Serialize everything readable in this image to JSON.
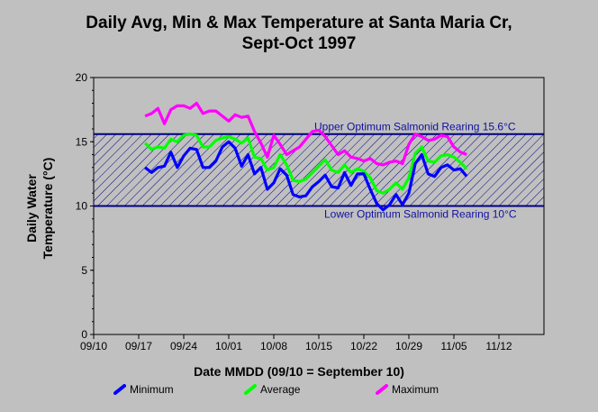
{
  "chart_data": {
    "type": "line",
    "title_line1": "Daily Avg, Min & Max Temperature at Santa Maria Cr,",
    "title_line2": "Sept-Oct 1997",
    "ylabel_line1": "Daily Water",
    "ylabel_line2": "Temperature (°C)",
    "xlabel": "Date MMDD (09/10 = September 10)",
    "x_start_label": "09/10",
    "x_tick_labels": [
      "09/10",
      "09/17",
      "09/24",
      "10/01",
      "10/08",
      "10/15",
      "10/22",
      "10/29",
      "11/05",
      "11/12"
    ],
    "y_ticks": [
      0,
      5,
      10,
      15,
      20
    ],
    "ylim": [
      0,
      20
    ],
    "grid": false,
    "legend_position": "bottom",
    "band": {
      "upper": 15.6,
      "lower": 10,
      "upper_label": "Upper Optimum Salmonid Rearing 15.6°C",
      "lower_label": "Lower Optimum Salmonid Rearing 10°C",
      "color": "#000080"
    },
    "x_dates": [
      "09/18",
      "09/19",
      "09/20",
      "09/21",
      "09/22",
      "09/23",
      "09/24",
      "09/25",
      "09/26",
      "09/27",
      "09/28",
      "09/29",
      "09/30",
      "10/01",
      "10/02",
      "10/03",
      "10/04",
      "10/05",
      "10/06",
      "10/07",
      "10/08",
      "10/09",
      "10/10",
      "10/11",
      "10/12",
      "10/13",
      "10/14",
      "10/15",
      "10/16",
      "10/17",
      "10/18",
      "10/19",
      "10/20",
      "10/21",
      "10/22",
      "10/23",
      "10/24",
      "10/25",
      "10/26",
      "10/27",
      "10/28",
      "10/29",
      "10/30",
      "10/31",
      "11/01",
      "11/02",
      "11/03",
      "11/04",
      "11/05",
      "11/06",
      "11/07"
    ],
    "series": [
      {
        "name": "Minimum",
        "color": "#0000ff",
        "values": [
          13.0,
          12.6,
          13.0,
          13.1,
          14.2,
          13.0,
          13.9,
          14.5,
          14.4,
          13.0,
          13.0,
          13.5,
          14.6,
          15.0,
          14.5,
          13.1,
          14.0,
          12.5,
          13.0,
          11.3,
          11.8,
          12.9,
          12.4,
          10.9,
          10.7,
          10.8,
          11.5,
          11.9,
          12.4,
          11.5,
          11.4,
          12.6,
          11.6,
          12.5,
          12.5,
          11.3,
          10.2,
          9.7,
          10.1,
          10.9,
          10.1,
          11.0,
          13.3,
          14.0,
          12.5,
          12.3,
          13.0,
          13.2,
          12.8,
          12.9,
          12.3
        ]
      },
      {
        "name": "Average",
        "color": "#00ff00",
        "values": [
          14.9,
          14.4,
          14.6,
          14.5,
          15.2,
          15.0,
          15.5,
          15.6,
          15.5,
          14.6,
          14.6,
          15.1,
          15.3,
          15.4,
          15.2,
          14.9,
          15.3,
          13.8,
          13.7,
          12.8,
          13.0,
          14.0,
          13.2,
          12.0,
          11.9,
          12.1,
          12.6,
          13.1,
          13.6,
          12.8,
          12.6,
          13.2,
          12.6,
          12.9,
          12.7,
          12.2,
          11.2,
          11.0,
          11.3,
          11.8,
          11.3,
          12.2,
          14.1,
          14.6,
          13.5,
          13.4,
          13.9,
          14.0,
          13.8,
          13.4,
          12.9
        ]
      },
      {
        "name": "Maximum",
        "color": "#ff00ff",
        "values": [
          17.0,
          17.2,
          17.6,
          16.4,
          17.5,
          17.8,
          17.8,
          17.6,
          18.0,
          17.2,
          17.4,
          17.4,
          17.0,
          16.6,
          17.1,
          16.9,
          17.0,
          15.8,
          14.9,
          13.8,
          15.5,
          14.8,
          14.0,
          14.3,
          14.6,
          15.2,
          15.8,
          15.9,
          15.4,
          14.7,
          14.0,
          14.3,
          13.8,
          13.7,
          13.5,
          13.7,
          13.3,
          13.2,
          13.4,
          13.5,
          13.3,
          14.8,
          15.6,
          15.4,
          15.1,
          15.2,
          15.5,
          15.4,
          14.6,
          14.2,
          14.0
        ]
      }
    ]
  }
}
